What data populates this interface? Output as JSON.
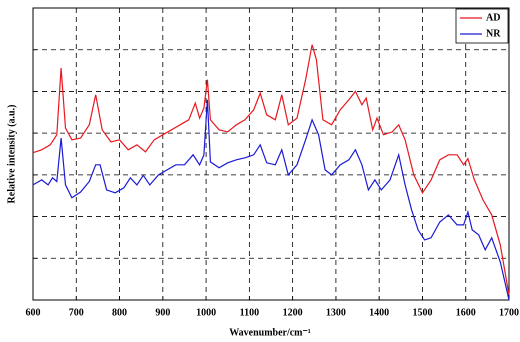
{
  "chart_data": {
    "type": "line",
    "xlabel": "Wavenumber/cm⁻¹",
    "ylabel": "Relative intensity (a.u.)",
    "xlim": [
      600,
      1700
    ],
    "xticks": [
      600,
      700,
      800,
      900,
      1000,
      1100,
      1200,
      1300,
      1400,
      1500,
      1600,
      1700
    ],
    "ylim": [
      0,
      7
    ],
    "yticks": [
      1,
      2,
      3,
      4,
      5,
      6
    ],
    "grid": true,
    "legend": "upper right",
    "series": [
      {
        "name": "AD",
        "color": "#e8181e",
        "x": [
          600,
          620,
          640,
          655,
          665,
          675,
          690,
          710,
          730,
          745,
          760,
          780,
          800,
          820,
          840,
          860,
          880,
          900,
          920,
          940,
          960,
          975,
          985,
          995,
          1003,
          1010,
          1030,
          1050,
          1070,
          1090,
          1110,
          1125,
          1140,
          1160,
          1175,
          1190,
          1210,
          1230,
          1245,
          1255,
          1270,
          1290,
          1310,
          1330,
          1345,
          1360,
          1370,
          1385,
          1395,
          1410,
          1430,
          1445,
          1460,
          1480,
          1500,
          1520,
          1540,
          1560,
          1580,
          1595,
          1605,
          1620,
          1640,
          1660,
          1680,
          1700
        ],
        "values": [
          3.53,
          3.6,
          3.72,
          3.96,
          5.56,
          4.12,
          3.84,
          3.88,
          4.2,
          4.92,
          4.08,
          3.79,
          3.84,
          3.6,
          3.72,
          3.55,
          3.84,
          3.96,
          4.08,
          4.2,
          4.32,
          4.72,
          4.36,
          4.6,
          5.28,
          4.32,
          4.08,
          4.03,
          4.2,
          4.32,
          4.56,
          4.96,
          4.44,
          4.32,
          4.92,
          4.2,
          4.36,
          5.28,
          6.12,
          5.76,
          4.32,
          4.2,
          4.56,
          4.8,
          5.0,
          4.68,
          4.84,
          4.08,
          4.36,
          3.96,
          4.03,
          4.2,
          3.84,
          3.0,
          2.57,
          2.88,
          3.36,
          3.48,
          3.48,
          3.24,
          3.39,
          2.88,
          2.4,
          2.04,
          1.32,
          0.12
        ]
      },
      {
        "name": "NR",
        "color": "#1a1ad6",
        "x": [
          600,
          620,
          635,
          645,
          655,
          665,
          675,
          690,
          710,
          730,
          745,
          755,
          770,
          790,
          810,
          825,
          840,
          855,
          870,
          890,
          910,
          930,
          950,
          970,
          985,
          995,
          1003,
          1010,
          1030,
          1050,
          1070,
          1090,
          1110,
          1125,
          1140,
          1160,
          1175,
          1190,
          1210,
          1230,
          1245,
          1260,
          1275,
          1290,
          1310,
          1330,
          1345,
          1360,
          1375,
          1390,
          1405,
          1425,
          1445,
          1460,
          1475,
          1490,
          1505,
          1520,
          1540,
          1560,
          1580,
          1595,
          1605,
          1615,
          1630,
          1645,
          1660,
          1680,
          1700
        ],
        "values": [
          2.76,
          2.88,
          2.76,
          2.93,
          2.84,
          3.88,
          2.76,
          2.45,
          2.59,
          2.84,
          3.24,
          3.24,
          2.64,
          2.57,
          2.69,
          2.93,
          2.76,
          2.99,
          2.76,
          3.0,
          3.12,
          3.24,
          3.24,
          3.48,
          3.24,
          3.48,
          4.8,
          3.31,
          3.17,
          3.29,
          3.36,
          3.41,
          3.48,
          3.72,
          3.29,
          3.24,
          3.6,
          3.0,
          3.24,
          3.84,
          4.32,
          3.96,
          3.12,
          3.0,
          3.24,
          3.36,
          3.6,
          3.24,
          2.64,
          2.88,
          2.64,
          2.88,
          3.48,
          2.76,
          2.16,
          1.68,
          1.44,
          1.49,
          1.87,
          2.04,
          1.8,
          1.8,
          2.11,
          1.68,
          1.56,
          1.2,
          1.49,
          0.91,
          0
        ]
      }
    ]
  }
}
